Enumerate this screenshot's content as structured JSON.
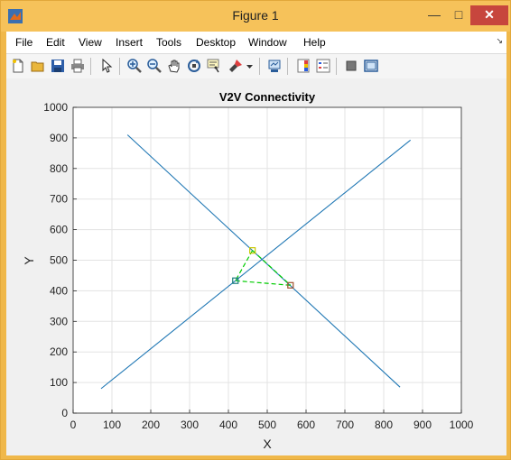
{
  "window": {
    "title": "Figure 1"
  },
  "menu": {
    "items": [
      "File",
      "Edit",
      "View",
      "Insert",
      "Tools",
      "Desktop",
      "Window",
      "Help"
    ]
  },
  "toolbar": {
    "icons": [
      "new-figure-icon",
      "open-file-icon",
      "save-icon",
      "print-icon",
      "edit-plot-arrow-icon",
      "zoom-in-icon",
      "zoom-out-icon",
      "pan-hand-icon",
      "rotate-3d-icon",
      "data-cursor-icon",
      "brush-icon",
      "brush-dropdown-icon",
      "link-plot-icon",
      "insert-colorbar-icon",
      "insert-legend-icon",
      "hide-plot-tools-icon",
      "show-plot-tools-icon"
    ]
  },
  "chart_data": {
    "type": "line",
    "title": "V2V Connectivity",
    "xlabel": "X",
    "ylabel": "Y",
    "xlim": [
      0,
      1000
    ],
    "ylim": [
      0,
      1000
    ],
    "xticks": [
      0,
      100,
      200,
      300,
      400,
      500,
      600,
      700,
      800,
      900,
      1000
    ],
    "yticks": [
      0,
      100,
      200,
      300,
      400,
      500,
      600,
      700,
      800,
      900,
      1000
    ],
    "grid": true,
    "series": [
      {
        "x": [
          140,
          842
        ],
        "y": [
          910,
          85
        ],
        "color": "#1f77b4",
        "style": "solid"
      },
      {
        "x": [
          72,
          869
        ],
        "y": [
          80,
          893
        ],
        "color": "#1f77b4",
        "style": "solid"
      }
    ],
    "links": [
      {
        "x": [
          462,
          418
        ],
        "y": [
          532,
          433
        ],
        "color": "#00cc00",
        "style": "dashed"
      },
      {
        "x": [
          462,
          560
        ],
        "y": [
          532,
          418
        ],
        "color": "#00cc00",
        "style": "dashed"
      },
      {
        "x": [
          418,
          560
        ],
        "y": [
          433,
          418
        ],
        "color": "#00cc00",
        "style": "dashed"
      }
    ],
    "markers": [
      {
        "x": 462,
        "y": 532,
        "color": "#c8c800"
      },
      {
        "x": 418,
        "y": 433,
        "color": "#1f7f7f"
      },
      {
        "x": 560,
        "y": 418,
        "color": "#a0522d"
      }
    ]
  }
}
